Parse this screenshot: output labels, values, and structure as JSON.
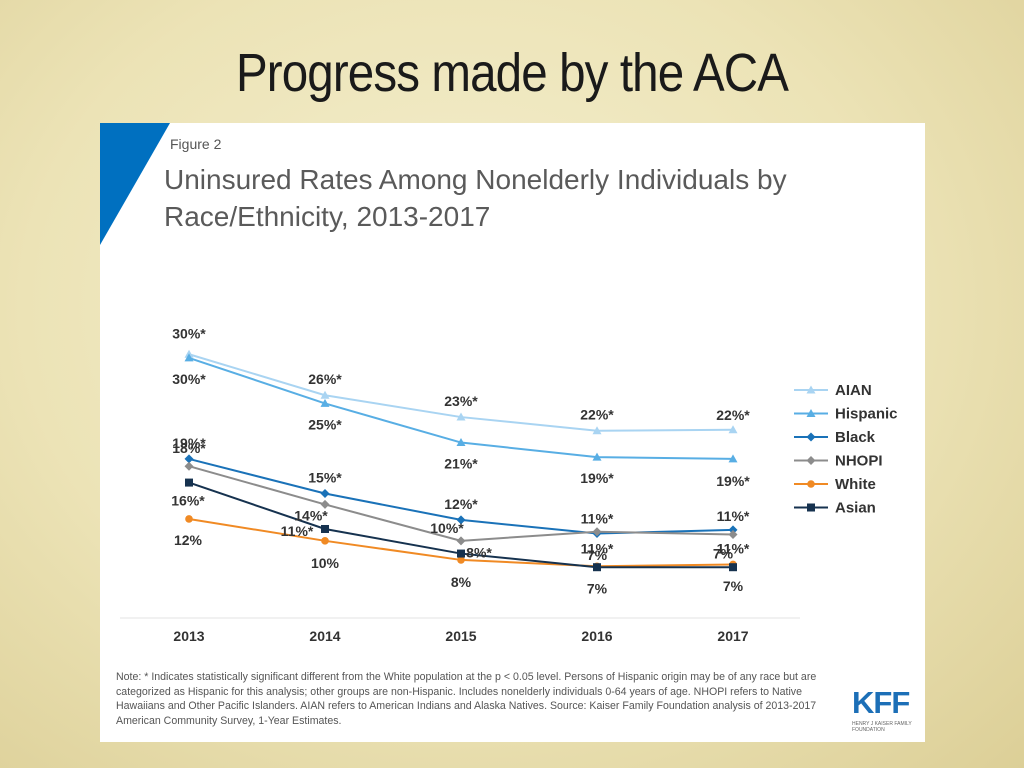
{
  "slide": {
    "title": "Progress made by the ACA"
  },
  "figure": {
    "label": "Figure 2",
    "title": "Uninsured Rates Among Nonelderly Individuals by Race/Ethnicity, 2013-2017",
    "accent_color": "#0070c0",
    "note": "Note: * Indicates statistically significant different from the White population at the p < 0.05 level. Persons of Hispanic origin may be of any race but are categorized as Hispanic for this analysis; other groups are non-Hispanic. Includes nonelderly individuals 0-64 years of age. NHOPI refers to Native Hawaiians and Other Pacific Islanders. AIAN refers to American Indians and Alaska Natives. Source: Kaiser Family Foundation analysis of 2013-2017 American Community Survey, 1-Year Estimates.",
    "logo": {
      "mark": "KFF",
      "subtitle": "HENRY J KAISER FAMILY FOUNDATION"
    }
  },
  "chart_data": {
    "type": "line",
    "x": [
      "2013",
      "2014",
      "2015",
      "2016",
      "2017"
    ],
    "ylim": [
      0,
      35
    ],
    "grid": false,
    "legend_position": "right",
    "series": [
      {
        "name": "AIAN",
        "color": "#a9d4f2",
        "marker": "triangle",
        "values": [
          30.3,
          25.8,
          23.4,
          21.9,
          22.0
        ],
        "labels": [
          "30%*",
          "26%*",
          "23%*",
          "22%*",
          "22%*"
        ]
      },
      {
        "name": "Hispanic",
        "color": "#58aee4",
        "marker": "triangle",
        "values": [
          29.9,
          24.9,
          20.6,
          19.0,
          18.8
        ],
        "labels": [
          "30%*",
          "25%*",
          "21%*",
          "19%*",
          "19%*"
        ]
      },
      {
        "name": "Black",
        "color": "#1a72b8",
        "marker": "diamond",
        "values": [
          18.8,
          15.0,
          12.1,
          10.6,
          11.0
        ],
        "labels": [
          "19%*",
          "15%*",
          "12%*",
          "11%*",
          "11%*"
        ]
      },
      {
        "name": "NHOPI",
        "color": "#8c8c8c",
        "marker": "diamond",
        "values": [
          18.0,
          13.8,
          9.8,
          10.8,
          10.5
        ],
        "labels": [
          "18%*",
          "14%*",
          "10%*",
          "11%*",
          "11%*"
        ]
      },
      {
        "name": "White",
        "color": "#f08a24",
        "marker": "circle",
        "values": [
          12.2,
          9.8,
          7.7,
          7.0,
          7.2
        ],
        "labels": [
          "12%",
          "10%",
          "8%",
          "7%",
          "7%"
        ]
      },
      {
        "name": "Asian",
        "color": "#16324f",
        "marker": "square",
        "values": [
          16.2,
          11.1,
          8.4,
          6.9,
          6.9
        ],
        "labels": [
          "16%*",
          "11%*",
          "8%*",
          "7%",
          "7%"
        ]
      }
    ]
  }
}
